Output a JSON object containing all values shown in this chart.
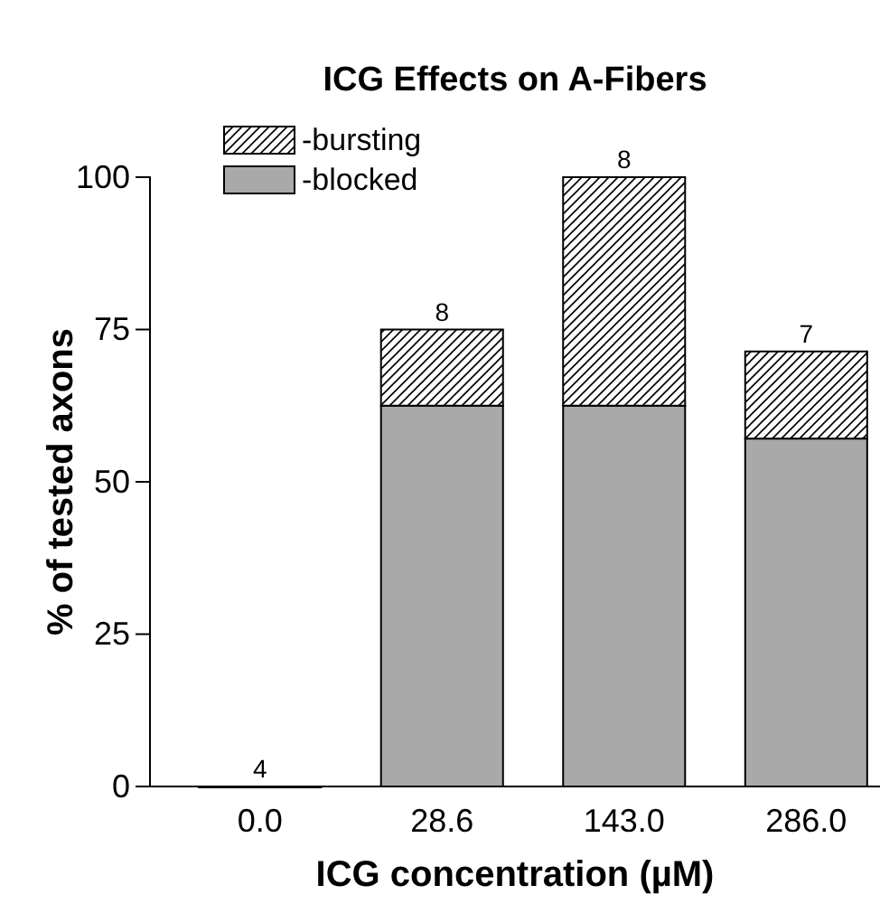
{
  "chart_data": {
    "type": "bar",
    "title": "ICG Effects on A-Fibers",
    "xlabel": "ICG concentration (µM)",
    "ylabel": "% of tested axons",
    "categories": [
      "0.0",
      "28.6",
      "143.0",
      "286.0"
    ],
    "stacked": true,
    "ylim": [
      0,
      100
    ],
    "yticks": [
      0,
      25,
      50,
      75,
      100
    ],
    "legend": "top left",
    "series": [
      {
        "name": "-blocked",
        "color": "#a9a9a9",
        "values": [
          0,
          62.5,
          62.5,
          57.1
        ]
      },
      {
        "name": "-bursting",
        "color": "#000000",
        "values": [
          0,
          12.5,
          37.5,
          14.3
        ]
      }
    ],
    "annotations": [
      {
        "text": "4",
        "x": "0.0",
        "y": 0
      },
      {
        "text": "8",
        "x": "28.6",
        "y": 75
      },
      {
        "text": "8",
        "x": "143.0",
        "y": 100
      },
      {
        "text": "7",
        "x": "286.0",
        "y": 71.4
      }
    ]
  }
}
